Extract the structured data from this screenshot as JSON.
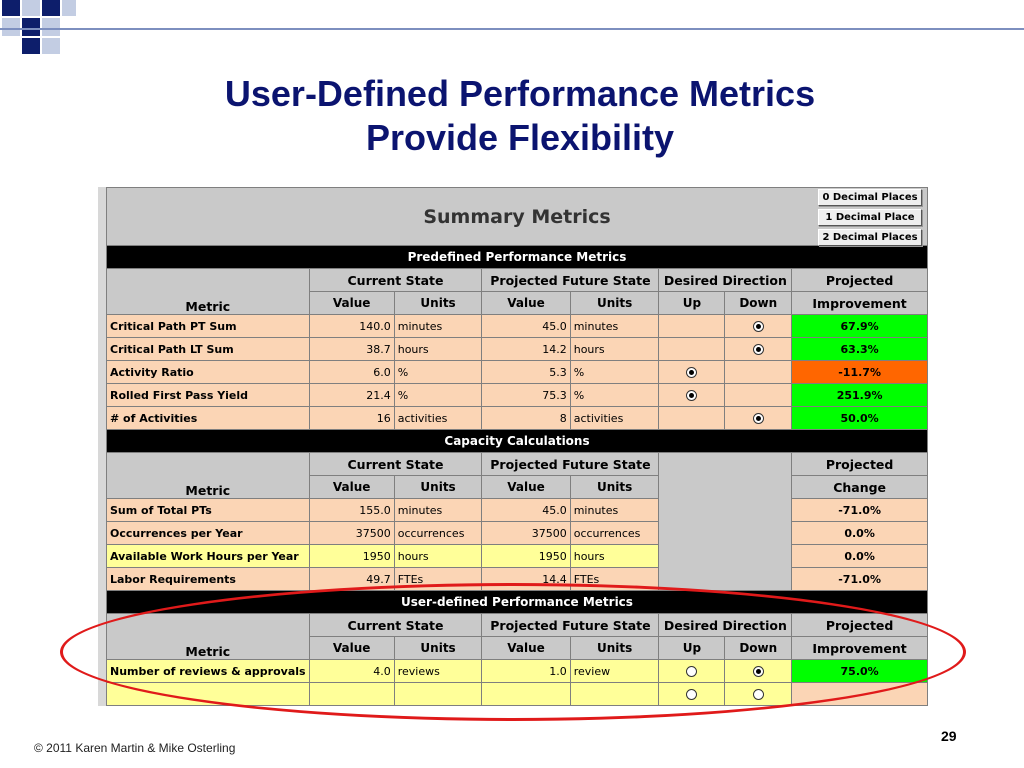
{
  "slide": {
    "title_line1": "User-Defined Performance Metrics",
    "title_line2": "Provide Flexibility",
    "copyright": "© 2011 Karen Martin & Mike Osterling",
    "page_number": "29"
  },
  "buttons": [
    "0 Decimal Places",
    "1 Decimal Place",
    "2 Decimal Places"
  ],
  "sheet": {
    "title": "Summary Metrics",
    "headers": {
      "metric": "Metric",
      "current_state": "Current State",
      "projected_future_state": "Projected Future State",
      "desired_direction": "Desired Direction",
      "value": "Value",
      "units": "Units",
      "up": "Up",
      "down": "Down",
      "projected": "Projected",
      "improvement": "Improvement",
      "change": "Change"
    },
    "predefined": {
      "section_title": "Predefined Performance Metrics",
      "rows": [
        {
          "metric": "Critical Path PT Sum",
          "cur_val": "140.0",
          "cur_unit": "minutes",
          "fut_val": "45.0",
          "fut_unit": "minutes",
          "direction": "down",
          "improvement": "67.9%",
          "color": "green"
        },
        {
          "metric": "Critical Path LT Sum",
          "cur_val": "38.7",
          "cur_unit": "hours",
          "fut_val": "14.2",
          "fut_unit": "hours",
          "direction": "down",
          "improvement": "63.3%",
          "color": "green"
        },
        {
          "metric": "Activity Ratio",
          "cur_val": "6.0",
          "cur_unit": "%",
          "fut_val": "5.3",
          "fut_unit": "%",
          "direction": "up",
          "improvement": "-11.7%",
          "color": "orange"
        },
        {
          "metric": "Rolled First Pass Yield",
          "cur_val": "21.4",
          "cur_unit": "%",
          "fut_val": "75.3",
          "fut_unit": "%",
          "direction": "up",
          "improvement": "251.9%",
          "color": "green"
        },
        {
          "metric": "# of Activities",
          "cur_val": "16",
          "cur_unit": "activities",
          "fut_val": "8",
          "fut_unit": "activities",
          "direction": "down",
          "improvement": "50.0%",
          "color": "green"
        }
      ]
    },
    "capacity": {
      "section_title": "Capacity Calculations",
      "rows": [
        {
          "metric": "Sum of Total PTs",
          "cur_val": "155.0",
          "cur_unit": "minutes",
          "fut_val": "45.0",
          "fut_unit": "minutes",
          "change": "-71.0%",
          "fill": "peach"
        },
        {
          "metric": "Occurrences per Year",
          "cur_val": "37500",
          "cur_unit": "occurrences",
          "fut_val": "37500",
          "fut_unit": "occurrences",
          "change": "0.0%",
          "fill": "peach"
        },
        {
          "metric": "Available Work Hours per Year",
          "cur_val": "1950",
          "cur_unit": "hours",
          "fut_val": "1950",
          "fut_unit": "hours",
          "change": "0.0%",
          "fill": "yellow"
        },
        {
          "metric": "Labor Requirements",
          "cur_val": "49.7",
          "cur_unit": "FTEs",
          "fut_val": "14.4",
          "fut_unit": "FTEs",
          "change": "-71.0%",
          "fill": "peach"
        }
      ]
    },
    "user_defined": {
      "section_title": "User-defined Performance Metrics",
      "rows": [
        {
          "metric": "Number of reviews & approvals",
          "cur_val": "4.0",
          "cur_unit": "reviews",
          "fut_val": "1.0",
          "fut_unit": "review",
          "direction": "down",
          "improvement": "75.0%",
          "color": "green"
        },
        {
          "metric": "",
          "cur_val": "",
          "cur_unit": "",
          "fut_val": "",
          "fut_unit": "",
          "direction": "none",
          "improvement": "",
          "color": "peach"
        }
      ]
    }
  }
}
